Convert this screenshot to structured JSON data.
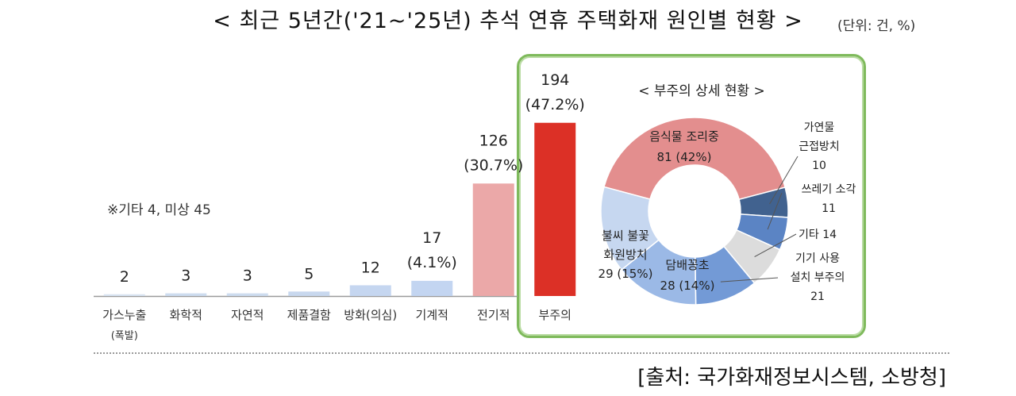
{
  "title": "< 최근 5년간('21~'25년) 추석 연휴 주택화재 원인별 현황 >",
  "unit": "(단위: 건, %)",
  "note": "※기타 4, 미상 45",
  "source": "[출처: 국가화재정보시스템, 소방청]",
  "chart_data": [
    {
      "type": "bar",
      "title": "< 최근 5년간('21~'25년) 추석 연휴 주택화재 원인별 현황 >",
      "categories": [
        [
          "가스누출",
          "(폭발)"
        ],
        [
          "화학적"
        ],
        [
          "자연적"
        ],
        [
          "제품결함"
        ],
        [
          "방화(의심)"
        ],
        [
          "기계적"
        ],
        [
          "전기적"
        ],
        [
          "부주의"
        ]
      ],
      "values": [
        2,
        3,
        3,
        5,
        12,
        17,
        126,
        194
      ],
      "percent_labels": [
        "",
        "",
        "",
        "",
        "",
        "(4.1%)",
        "(30.7%)",
        "(47.2%)"
      ],
      "colors": [
        "#d9e4f2",
        "#cddcef",
        "#cddcef",
        "#c8d8ee",
        "#c5d6f0",
        "#c3d5f1",
        "#eba8a8",
        "#dc3026"
      ],
      "ylim": [
        0,
        200
      ],
      "xlabel": "",
      "ylabel": ""
    },
    {
      "type": "pie",
      "title": "< 부주의 상세 현황 >",
      "donut": true,
      "slices": [
        {
          "label": "음식물 조리중",
          "value": 81,
          "pct": "42%",
          "text": "81 (42%)",
          "color": "#e38e8e"
        },
        {
          "label": "가연물 근접방치",
          "value": 10,
          "text": "10",
          "color": "#41628f"
        },
        {
          "label": "쓰레기 소각",
          "value": 11,
          "text": "11",
          "color": "#5b84c4"
        },
        {
          "label": "기타",
          "value": 14,
          "text": "14",
          "color": "#dcdcdc"
        },
        {
          "label": "기기 사용 설치 부주의",
          "value": 21,
          "text": "21",
          "color": "#739ad6"
        },
        {
          "label": "담배꽁초",
          "value": 28,
          "pct": "14%",
          "text": "28 (14%)",
          "color": "#9bb9e6"
        },
        {
          "label": "불씨 불꽃 화원방치",
          "value": 29,
          "pct": "15%",
          "text": "29 (15%)",
          "color": "#c6d7f0"
        }
      ],
      "labels": {
        "s0": [
          "음식물 조리중",
          "81 (42%)"
        ],
        "s1": [
          "가연물",
          "근접방치",
          "10"
        ],
        "s2": [
          "쓰레기 소각",
          "11"
        ],
        "s3": [
          "기타 14"
        ],
        "s4": [
          "기기 사용",
          "설치 부주의",
          "21"
        ],
        "s5": [
          "담배꽁초",
          "28 (14%)"
        ],
        "s6": [
          "불씨 불꽃",
          "화원방치",
          "29 (15%)"
        ]
      }
    }
  ]
}
